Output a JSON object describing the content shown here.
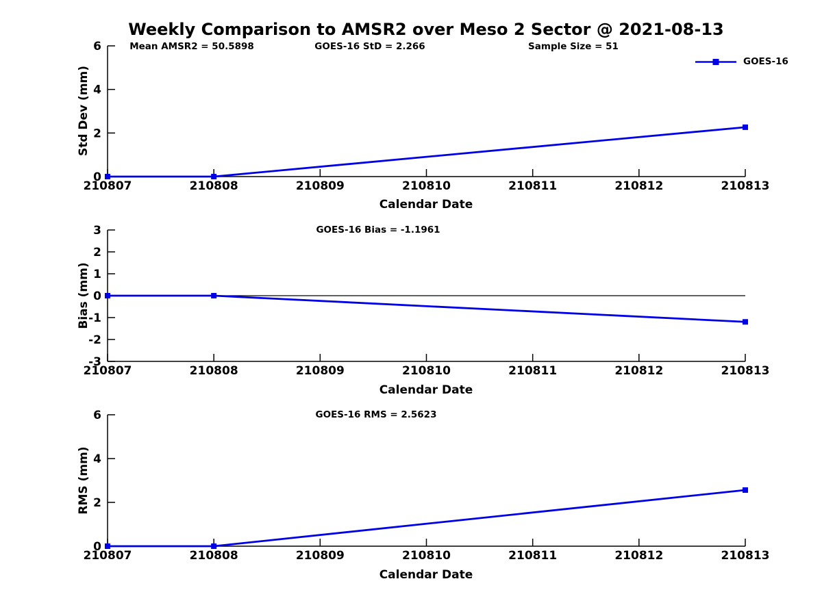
{
  "title": "Weekly Comparison to AMSR2 over Meso 2 Sector @ 2021-08-13",
  "legend": {
    "label": "GOES-16"
  },
  "colors": {
    "line": "#0000e6",
    "marker": "#0000e6",
    "axis": "#000000",
    "text": "#000000",
    "background": "#ffffff"
  },
  "chart_data": [
    {
      "type": "line",
      "id": "std-dev",
      "ylabel": "Std Dev (mm)",
      "xlabel": "Calendar Date",
      "annotations": [
        "Mean AMSR2 = 50.5898",
        "GOES-16 StD = 2.266",
        "Sample Size = 51"
      ],
      "stats": {
        "mean_amsr2": 50.5898,
        "goes16_std": 2.266,
        "sample_size": 51
      },
      "x_ticks": [
        "210807",
        "210808",
        "210809",
        "210810",
        "210811",
        "210812",
        "210813"
      ],
      "xlim": [
        210807,
        210813
      ],
      "y_ticks": [
        0,
        2,
        4,
        6
      ],
      "ylim": [
        0,
        6
      ],
      "zero_line": false,
      "grid": false,
      "legend_position": "upper-right-outside",
      "series": [
        {
          "name": "GOES-16",
          "marker": "square",
          "x": [
            210807,
            210808,
            210813
          ],
          "y": [
            0,
            0,
            2.266
          ]
        }
      ]
    },
    {
      "type": "line",
      "id": "bias",
      "ylabel": "Bias (mm)",
      "xlabel": "Calendar Date",
      "annotations": [
        "GOES-16 Bias  = -1.1961"
      ],
      "stats": {
        "goes16_bias": -1.1961
      },
      "x_ticks": [
        "210807",
        "210808",
        "210809",
        "210810",
        "210811",
        "210812",
        "210813"
      ],
      "xlim": [
        210807,
        210813
      ],
      "y_ticks": [
        3,
        2,
        1,
        0,
        -1,
        -2,
        -3
      ],
      "ylim": [
        -3,
        3
      ],
      "zero_line": true,
      "grid": false,
      "series": [
        {
          "name": "GOES-16",
          "marker": "square",
          "x": [
            210807,
            210808,
            210813
          ],
          "y": [
            0,
            0,
            -1.1961
          ]
        }
      ]
    },
    {
      "type": "line",
      "id": "rms",
      "ylabel": "RMS (mm)",
      "xlabel": "Calendar Date",
      "annotations": [
        "GOES-16 RMS = 2.5623"
      ],
      "stats": {
        "goes16_rms": 2.5623
      },
      "x_ticks": [
        "210807",
        "210808",
        "210809",
        "210810",
        "210811",
        "210812",
        "210813"
      ],
      "xlim": [
        210807,
        210813
      ],
      "y_ticks": [
        0,
        2,
        4,
        6
      ],
      "ylim": [
        0,
        6
      ],
      "zero_line": false,
      "grid": false,
      "series": [
        {
          "name": "GOES-16",
          "marker": "square",
          "x": [
            210807,
            210808,
            210813
          ],
          "y": [
            0,
            0,
            2.5623
          ]
        }
      ]
    }
  ]
}
